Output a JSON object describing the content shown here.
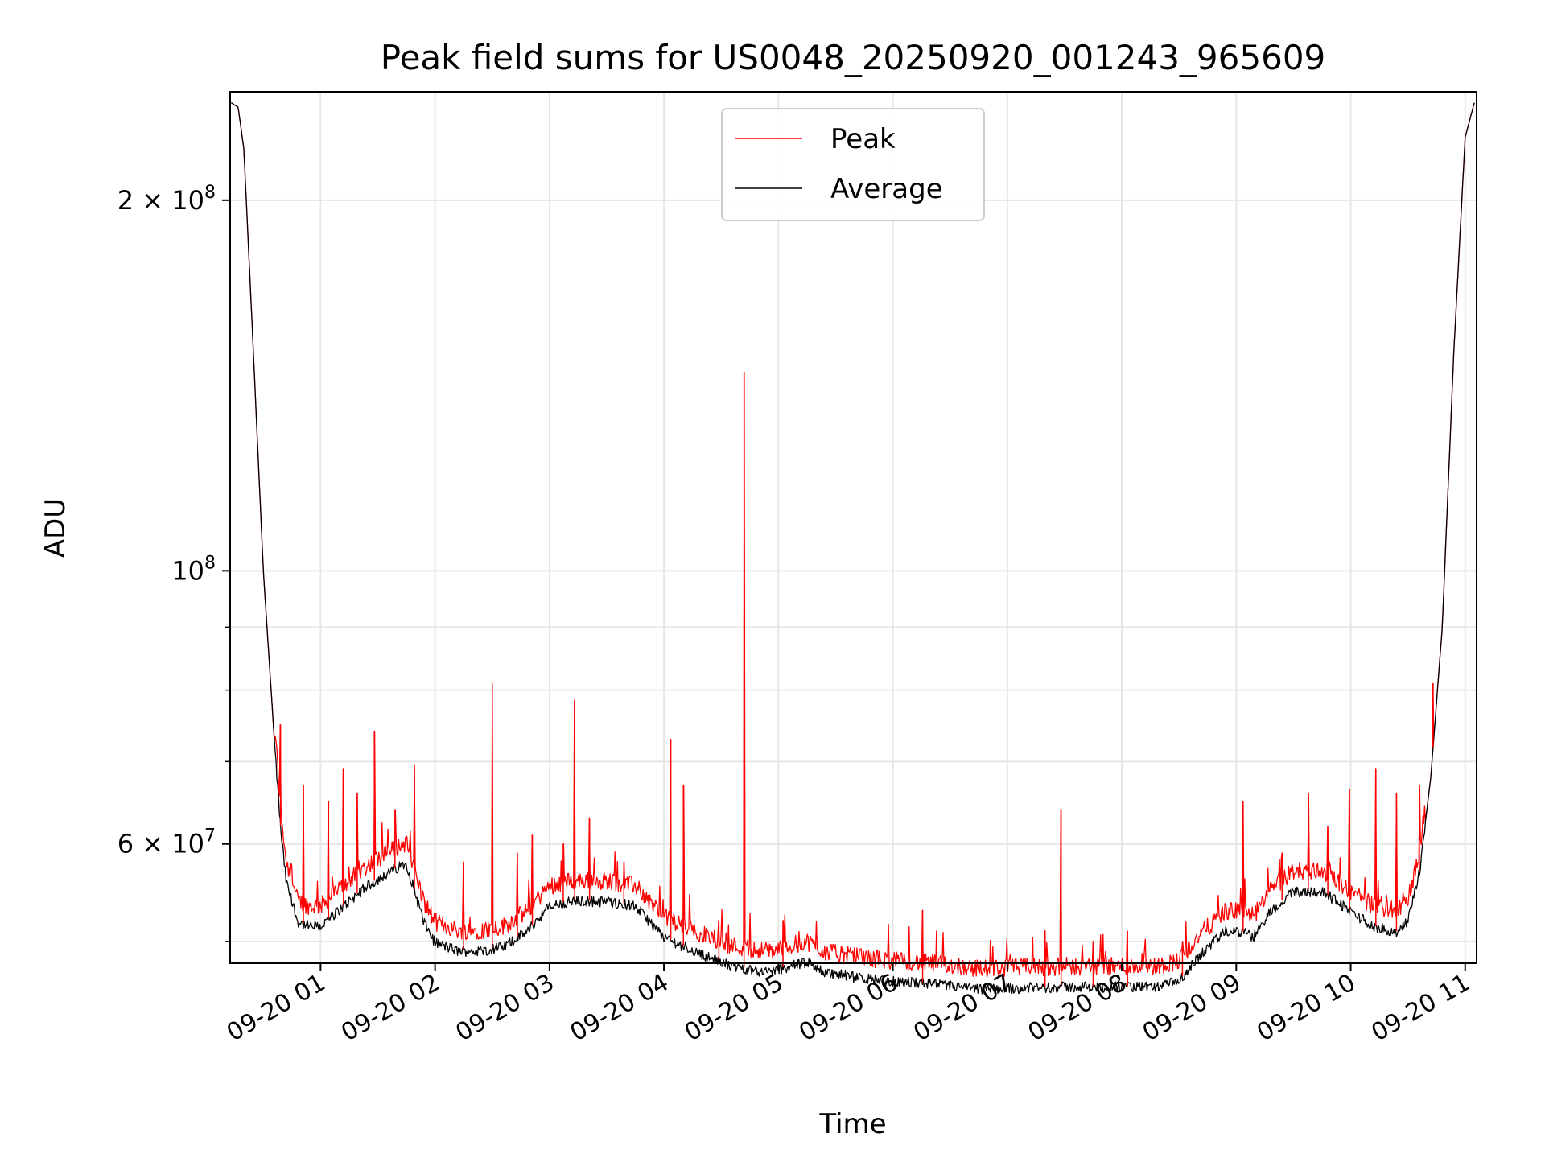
{
  "chart_data": {
    "type": "line",
    "title": "Peak field sums for US0048_20250920_001243_965609",
    "xlabel": "Time",
    "ylabel": "ADU",
    "yscale": "log",
    "xlim_hours": [
      0.21,
      11.1
    ],
    "ylim": [
      48000000,
      245000000
    ],
    "grid": true,
    "legend": {
      "position": "top-center",
      "entries": [
        "Peak",
        "Average"
      ]
    },
    "x_ticks": [
      {
        "hour": 1,
        "label": "09-20 01"
      },
      {
        "hour": 2,
        "label": "09-20 02"
      },
      {
        "hour": 3,
        "label": "09-20 03"
      },
      {
        "hour": 4,
        "label": "09-20 04"
      },
      {
        "hour": 5,
        "label": "09-20 05"
      },
      {
        "hour": 6,
        "label": "09-20 06"
      },
      {
        "hour": 7,
        "label": "09-20 07"
      },
      {
        "hour": 8,
        "label": "09-20 08"
      },
      {
        "hour": 9,
        "label": "09-20 09"
      },
      {
        "hour": 10,
        "label": "09-20 10"
      },
      {
        "hour": 11,
        "label": "09-20 11"
      }
    ],
    "y_major_ticks": [
      {
        "value": 100000000,
        "base": "10",
        "exp": "8"
      },
      {
        "value": 200000000,
        "mant": "2",
        "base": "10",
        "exp": "8"
      },
      {
        "value": 60000000,
        "mant": "6",
        "base": "10",
        "exp": "7"
      }
    ],
    "y_minor_ticks": [
      50000000,
      70000000,
      80000000,
      90000000
    ],
    "series": [
      {
        "name": "Average",
        "color": "#000000",
        "x_hours": [
          0.22,
          0.28,
          0.33,
          0.4,
          0.5,
          0.6,
          0.65,
          0.7,
          0.8,
          0.9,
          1.0,
          1.2,
          1.4,
          1.6,
          1.75,
          1.9,
          2.0,
          2.2,
          2.4,
          2.6,
          2.8,
          3.0,
          3.2,
          3.5,
          3.75,
          4.0,
          4.3,
          4.6,
          4.9,
          5.1,
          5.25,
          5.4,
          5.7,
          6.0,
          6.3,
          6.6,
          6.75,
          7.0,
          7.5,
          8.0,
          8.3,
          8.5,
          8.7,
          8.9,
          9.05,
          9.15,
          9.3,
          9.5,
          9.75,
          10.0,
          10.2,
          10.4,
          10.5,
          10.6,
          10.7,
          10.8,
          10.9,
          11.0,
          11.08
        ],
        "values": [
          240000000,
          238000000,
          220000000,
          160000000,
          100000000,
          72000000,
          62000000,
          56000000,
          52000000,
          51500000,
          51500000,
          53500000,
          55500000,
          57000000,
          58000000,
          52000000,
          50000000,
          49200000,
          49200000,
          49600000,
          51000000,
          53500000,
          54000000,
          54000000,
          53500000,
          50500000,
          49000000,
          47800000,
          47300000,
          47800000,
          48200000,
          47300000,
          46800000,
          46500000,
          46300000,
          46000000,
          45800000,
          45900000,
          46000000,
          46000000,
          46000000,
          46500000,
          49000000,
          51000000,
          51000000,
          50500000,
          53000000,
          55000000,
          55000000,
          53000000,
          51500000,
          51000000,
          52000000,
          57000000,
          68000000,
          90000000,
          150000000,
          225000000,
          240000000
        ]
      },
      {
        "name": "Peak",
        "color": "#ff0000",
        "spikes": [
          {
            "hour": 0.65,
            "value": 75000000
          },
          {
            "hour": 0.85,
            "value": 67000000
          },
          {
            "hour": 1.07,
            "value": 65000000
          },
          {
            "hour": 1.2,
            "value": 69000000
          },
          {
            "hour": 1.32,
            "value": 66000000
          },
          {
            "hour": 1.47,
            "value": 74000000
          },
          {
            "hour": 1.65,
            "value": 64000000
          },
          {
            "hour": 1.82,
            "value": 69500000
          },
          {
            "hour": 2.25,
            "value": 58000000
          },
          {
            "hour": 2.5,
            "value": 81000000
          },
          {
            "hour": 2.72,
            "value": 59000000
          },
          {
            "hour": 2.85,
            "value": 61000000
          },
          {
            "hour": 3.12,
            "value": 60000000
          },
          {
            "hour": 3.22,
            "value": 78500000
          },
          {
            "hour": 3.35,
            "value": 63000000
          },
          {
            "hour": 3.65,
            "value": 58000000
          },
          {
            "hour": 4.06,
            "value": 73000000
          },
          {
            "hour": 4.17,
            "value": 67000000
          },
          {
            "hour": 4.48,
            "value": 52000000
          },
          {
            "hour": 4.7,
            "value": 145000000
          },
          {
            "hour": 5.04,
            "value": 52000000
          },
          {
            "hour": 6.26,
            "value": 53000000
          },
          {
            "hour": 7.33,
            "value": 51000000
          },
          {
            "hour": 7.47,
            "value": 64000000
          },
          {
            "hour": 7.75,
            "value": 50000000
          },
          {
            "hour": 8.05,
            "value": 51000000
          },
          {
            "hour": 8.53,
            "value": 50000000
          },
          {
            "hour": 9.06,
            "value": 65000000
          },
          {
            "hour": 9.4,
            "value": 59000000
          },
          {
            "hour": 9.63,
            "value": 66000000
          },
          {
            "hour": 9.8,
            "value": 62000000
          },
          {
            "hour": 9.99,
            "value": 66500000
          },
          {
            "hour": 10.22,
            "value": 69000000
          },
          {
            "hour": 10.4,
            "value": 66000000
          },
          {
            "hour": 10.6,
            "value": 67000000
          },
          {
            "hour": 10.72,
            "value": 81000000
          }
        ]
      }
    ]
  }
}
